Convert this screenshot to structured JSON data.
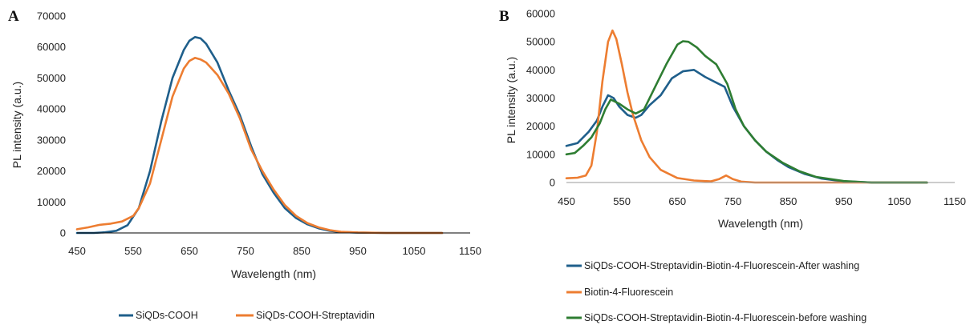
{
  "chart_data": [
    {
      "panel": "A",
      "type": "line",
      "xlabel": "Wavelength (nm)",
      "ylabel": "PL intensity (a.u.)",
      "xlim": [
        450,
        1150
      ],
      "ylim": [
        0,
        70000
      ],
      "x_ticks": [
        450,
        550,
        650,
        750,
        850,
        950,
        1050,
        1150
      ],
      "y_ticks": [
        0,
        10000,
        20000,
        30000,
        40000,
        50000,
        60000,
        70000
      ],
      "grid": false,
      "legend_position": "bottom",
      "series": [
        {
          "name": "SiQDs-COOH",
          "color": "#1f5f8b",
          "x": [
            450,
            480,
            500,
            520,
            540,
            560,
            580,
            600,
            620,
            640,
            650,
            660,
            670,
            680,
            700,
            720,
            740,
            760,
            780,
            800,
            820,
            840,
            860,
            880,
            900,
            920,
            950,
            1000,
            1050,
            1100
          ],
          "y": [
            0,
            0,
            200,
            700,
            2500,
            8000,
            20000,
            36000,
            50000,
            59000,
            62000,
            63200,
            62800,
            61000,
            55000,
            46000,
            38000,
            28000,
            19000,
            13000,
            8000,
            4800,
            2800,
            1500,
            700,
            300,
            100,
            0,
            0,
            0
          ]
        },
        {
          "name": "SiQDs-COOH-Streptavidin",
          "color": "#ed7d31",
          "x": [
            450,
            470,
            490,
            510,
            530,
            550,
            560,
            580,
            600,
            620,
            640,
            650,
            660,
            670,
            680,
            700,
            720,
            740,
            760,
            780,
            800,
            820,
            840,
            860,
            880,
            900,
            920,
            950,
            1000,
            1050,
            1100
          ],
          "y": [
            1200,
            1800,
            2600,
            3000,
            3700,
            5500,
            8000,
            16000,
            30000,
            44000,
            53000,
            55500,
            56500,
            56000,
            55000,
            51000,
            45000,
            37000,
            27000,
            20000,
            14000,
            9000,
            5500,
            3200,
            1800,
            900,
            400,
            150,
            0,
            0,
            0
          ]
        }
      ]
    },
    {
      "panel": "B",
      "type": "line",
      "xlabel": "Wavelength (nm)",
      "ylabel": "PL intensity (a.u.)",
      "xlim": [
        450,
        1150
      ],
      "ylim": [
        0,
        60000
      ],
      "x_ticks": [
        450,
        550,
        650,
        750,
        850,
        950,
        1050,
        1150
      ],
      "y_ticks": [
        0,
        10000,
        20000,
        30000,
        40000,
        50000,
        60000
      ],
      "grid": false,
      "legend_position": "bottom",
      "series": [
        {
          "name": "SiQDs-COOH-Streptavidin-Biotin-4-Fluorescein-After washing",
          "color": "#1f5f8b",
          "x": [
            450,
            470,
            490,
            505,
            515,
            525,
            535,
            545,
            560,
            575,
            585,
            600,
            620,
            640,
            660,
            680,
            700,
            720,
            735,
            750,
            770,
            790,
            810,
            830,
            850,
            880,
            910,
            950,
            1000,
            1050,
            1100
          ],
          "y": [
            13000,
            14000,
            18000,
            22000,
            27000,
            31000,
            30000,
            27000,
            24000,
            23000,
            24000,
            27500,
            31000,
            37000,
            39500,
            40000,
            37500,
            35500,
            34000,
            27000,
            20000,
            15000,
            11000,
            8000,
            5500,
            3000,
            1400,
            400,
            0,
            0,
            0
          ]
        },
        {
          "name": "Biotin-4-Fluorescein",
          "color": "#ed7d31",
          "x": [
            450,
            470,
            485,
            495,
            505,
            515,
            525,
            533,
            540,
            550,
            560,
            570,
            585,
            600,
            620,
            650,
            680,
            710,
            725,
            738,
            750,
            765,
            790,
            850,
            950,
            1050,
            1100
          ],
          "y": [
            1500,
            1700,
            2500,
            6000,
            18000,
            36000,
            50000,
            54000,
            51000,
            42000,
            32000,
            24000,
            15000,
            9000,
            4500,
            1600,
            700,
            400,
            1200,
            2500,
            1200,
            300,
            0,
            0,
            0,
            0,
            0
          ]
        },
        {
          "name": "SiQDs-COOH-Streptavidin-Biotin-4-Fluorescein-before washing",
          "color": "#2e7d32",
          "x": [
            450,
            465,
            480,
            495,
            510,
            520,
            530,
            545,
            560,
            575,
            590,
            610,
            630,
            650,
            660,
            670,
            685,
            700,
            720,
            740,
            755,
            770,
            790,
            810,
            840,
            870,
            900,
            950,
            1000,
            1050,
            1100
          ],
          "y": [
            10000,
            10500,
            13000,
            16000,
            21000,
            26000,
            29500,
            28000,
            26000,
            24500,
            26000,
            34000,
            42000,
            49000,
            50200,
            50000,
            48000,
            45000,
            42000,
            35000,
            26000,
            20000,
            15000,
            11000,
            7000,
            4000,
            2000,
            500,
            0,
            0,
            0
          ]
        }
      ]
    }
  ]
}
